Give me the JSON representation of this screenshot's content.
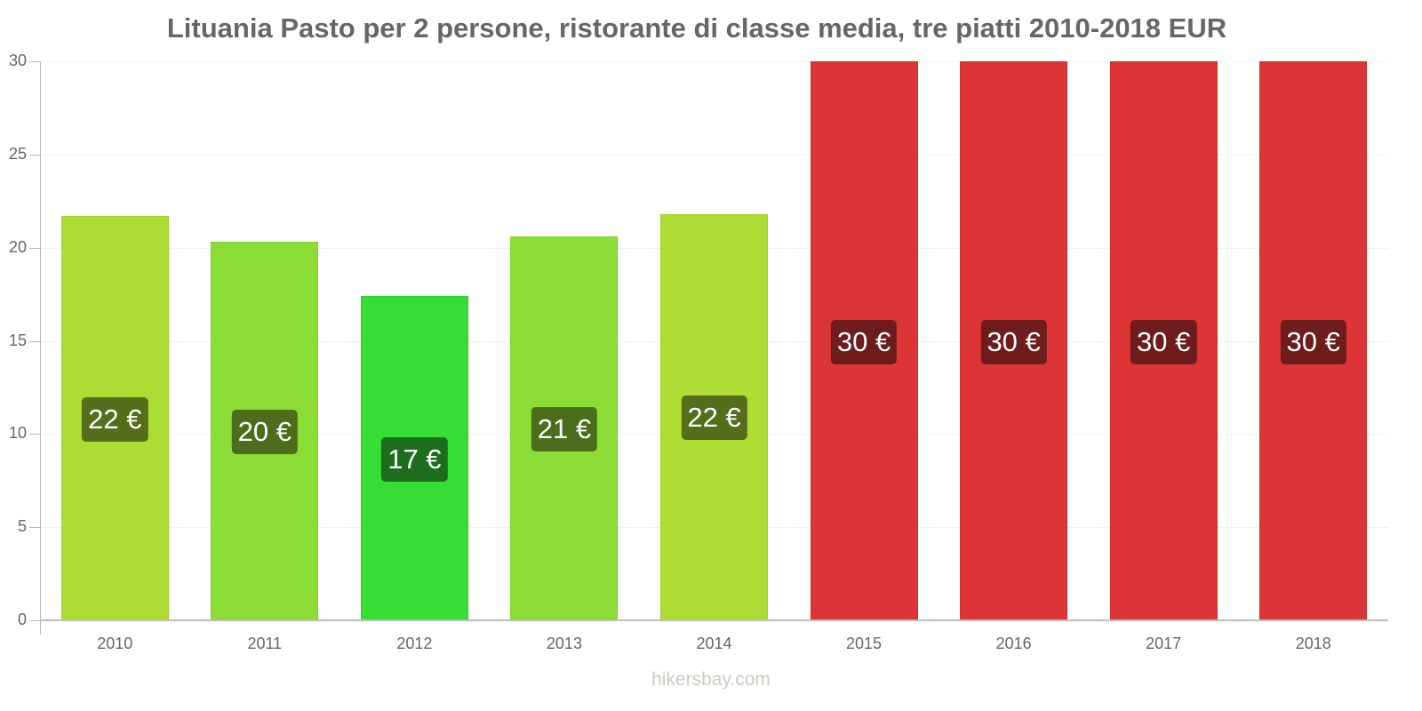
{
  "chart": {
    "title": "Lituania Pasto per 2 persone, ristorante di classe media, tre piatti 2010-2018 EUR",
    "watermark": "hikersbay.com",
    "y_ticks": [
      "0",
      "5",
      "10",
      "15",
      "20",
      "25",
      "30"
    ],
    "bars": [
      {
        "year": "2010",
        "value": 21.7,
        "label": "22 €",
        "color": "#addd35",
        "border": "#9ccf2a",
        "label_bg": "#566e1c"
      },
      {
        "year": "2011",
        "value": 20.3,
        "label": "20 €",
        "color": "#8bdd35",
        "border": "#7fcf2e",
        "label_bg": "#4a6e1c"
      },
      {
        "year": "2012",
        "value": 17.4,
        "label": "17 €",
        "color": "#35dd35",
        "border": "#2ecf2e",
        "label_bg": "#1c6e1c"
      },
      {
        "year": "2013",
        "value": 20.6,
        "label": "21 €",
        "color": "#8bdd35",
        "border": "#7fcf2e",
        "label_bg": "#4a6e1c"
      },
      {
        "year": "2014",
        "value": 21.8,
        "label": "22 €",
        "color": "#addd35",
        "border": "#9ccf2a",
        "label_bg": "#566e1c"
      },
      {
        "year": "2015",
        "value": 30,
        "label": "30 €",
        "color": "#dd3535",
        "border": "#d02e2e",
        "label_bg": "#6e1c1c"
      },
      {
        "year": "2016",
        "value": 30,
        "label": "30 €",
        "color": "#dd3535",
        "border": "#d02e2e",
        "label_bg": "#6e1c1c"
      },
      {
        "year": "2017",
        "value": 30,
        "label": "30 €",
        "color": "#dd3535",
        "border": "#d02e2e",
        "label_bg": "#6e1c1c"
      },
      {
        "year": "2018",
        "value": 30,
        "label": "30 €",
        "color": "#dd3535",
        "border": "#d02e2e",
        "label_bg": "#6e1c1c"
      }
    ]
  },
  "chart_data": {
    "type": "bar",
    "title": "Lituania Pasto per 2 persone, ristorante di classe media, tre piatti 2010-2018 EUR",
    "categories": [
      "2010",
      "2011",
      "2012",
      "2013",
      "2014",
      "2015",
      "2016",
      "2017",
      "2018"
    ],
    "values": [
      21.7,
      20.3,
      17.4,
      20.6,
      21.8,
      30,
      30,
      30,
      30
    ],
    "data_labels": [
      "22 €",
      "20 €",
      "17 €",
      "21 €",
      "22 €",
      "30 €",
      "30 €",
      "30 €",
      "30 €"
    ],
    "xlabel": "",
    "ylabel": "",
    "ylim": [
      0,
      30
    ],
    "y_ticks": [
      0,
      5,
      10,
      15,
      20,
      25,
      30
    ],
    "grid": true,
    "legend": null,
    "source": "hikersbay.com"
  }
}
